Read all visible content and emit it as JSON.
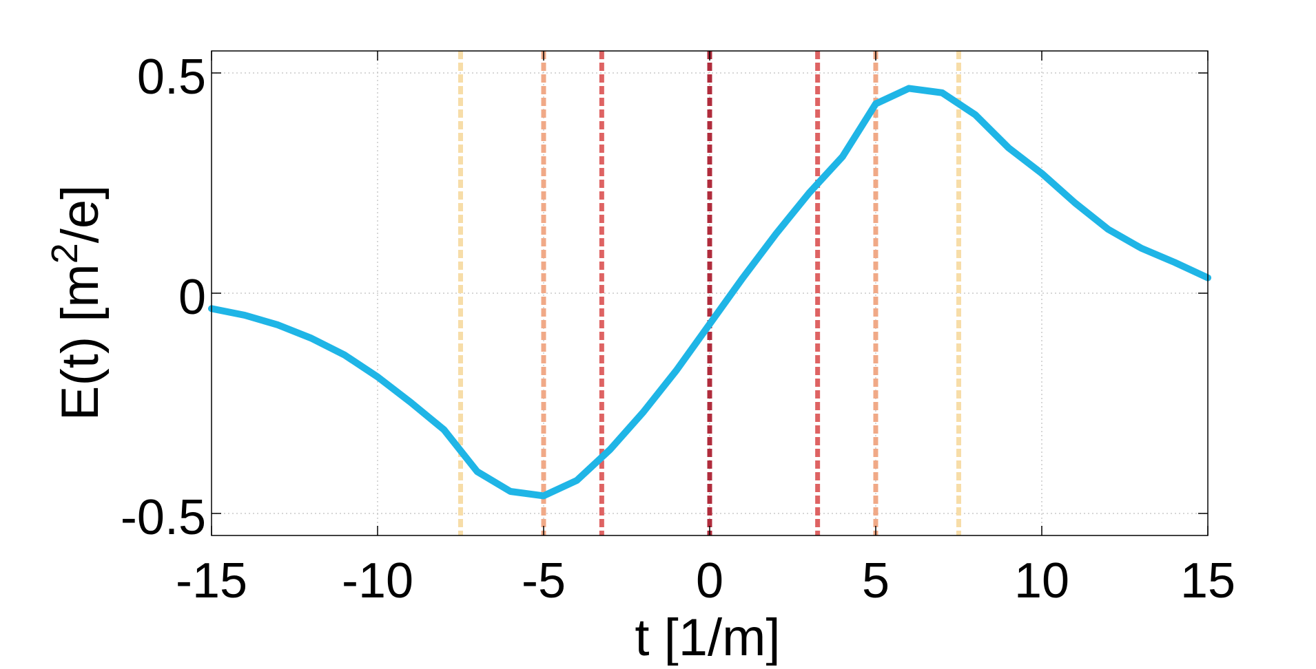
{
  "chart_data": {
    "type": "line",
    "title": "",
    "xlabel": "t [1/m]",
    "ylabel_main": "E(t) [m",
    "ylabel_sup": "2",
    "ylabel_tail": "/e]",
    "xlim": [
      -15,
      15
    ],
    "ylim": [
      -0.55,
      0.55
    ],
    "xticks": [
      -15,
      -10,
      -5,
      0,
      5,
      10,
      15
    ],
    "xtick_labels": [
      "-15",
      "-10",
      "-5",
      "0",
      "5",
      "10",
      "15"
    ],
    "yticks": [
      -0.5,
      0,
      0.5
    ],
    "ytick_labels": [
      "-0.5",
      "0",
      "0.5"
    ],
    "grid": true,
    "series": [
      {
        "color": "#1fb5e6",
        "x": [
          -15,
          -14,
          -13,
          -12,
          -11,
          -10,
          -9,
          -8,
          -7,
          -6,
          -5,
          -4,
          -3,
          -2,
          -1,
          0,
          1,
          2,
          3,
          4,
          5,
          6,
          7,
          8,
          9,
          10,
          11,
          12,
          13,
          14,
          15
        ],
        "y": [
          -0.035,
          -0.05,
          -0.072,
          -0.102,
          -0.14,
          -0.19,
          -0.248,
          -0.31,
          -0.405,
          -0.45,
          -0.46,
          -0.425,
          -0.355,
          -0.27,
          -0.175,
          -0.07,
          0.035,
          0.135,
          0.228,
          0.31,
          0.43,
          0.465,
          0.455,
          0.405,
          0.33,
          0.272,
          0.205,
          0.145,
          0.102,
          0.07,
          0.035
        ]
      }
    ],
    "vlines": [
      {
        "x": -7.5,
        "color": "#f7dda8"
      },
      {
        "x": -5.0,
        "color": "#f0a987"
      },
      {
        "x": -3.25,
        "color": "#de6363"
      },
      {
        "x": 0.0,
        "color": "#b02c3c"
      },
      {
        "x": 3.25,
        "color": "#de6363"
      },
      {
        "x": 5.0,
        "color": "#f0a987"
      },
      {
        "x": 7.5,
        "color": "#f7dda8"
      }
    ]
  }
}
